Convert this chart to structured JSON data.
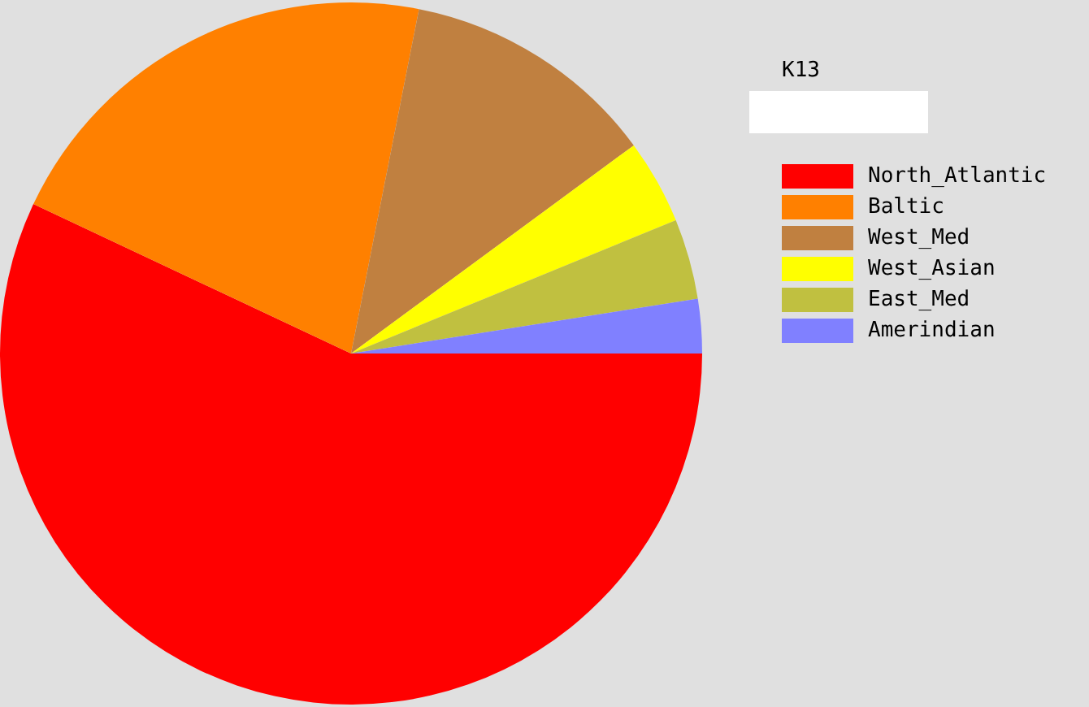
{
  "chart_data": {
    "type": "pie",
    "title": "K13",
    "categories": [
      "North_Atlantic",
      "Baltic",
      "West_Med",
      "West_Asian",
      "East_Med",
      "Amerindian"
    ],
    "values": [
      57.0,
      21.1,
      11.8,
      3.9,
      3.7,
      2.5
    ],
    "colors": [
      "#ff0000",
      "#ff8000",
      "#c08040",
      "#ffff00",
      "#c0c040",
      "#8080ff"
    ],
    "legend": "right"
  }
}
